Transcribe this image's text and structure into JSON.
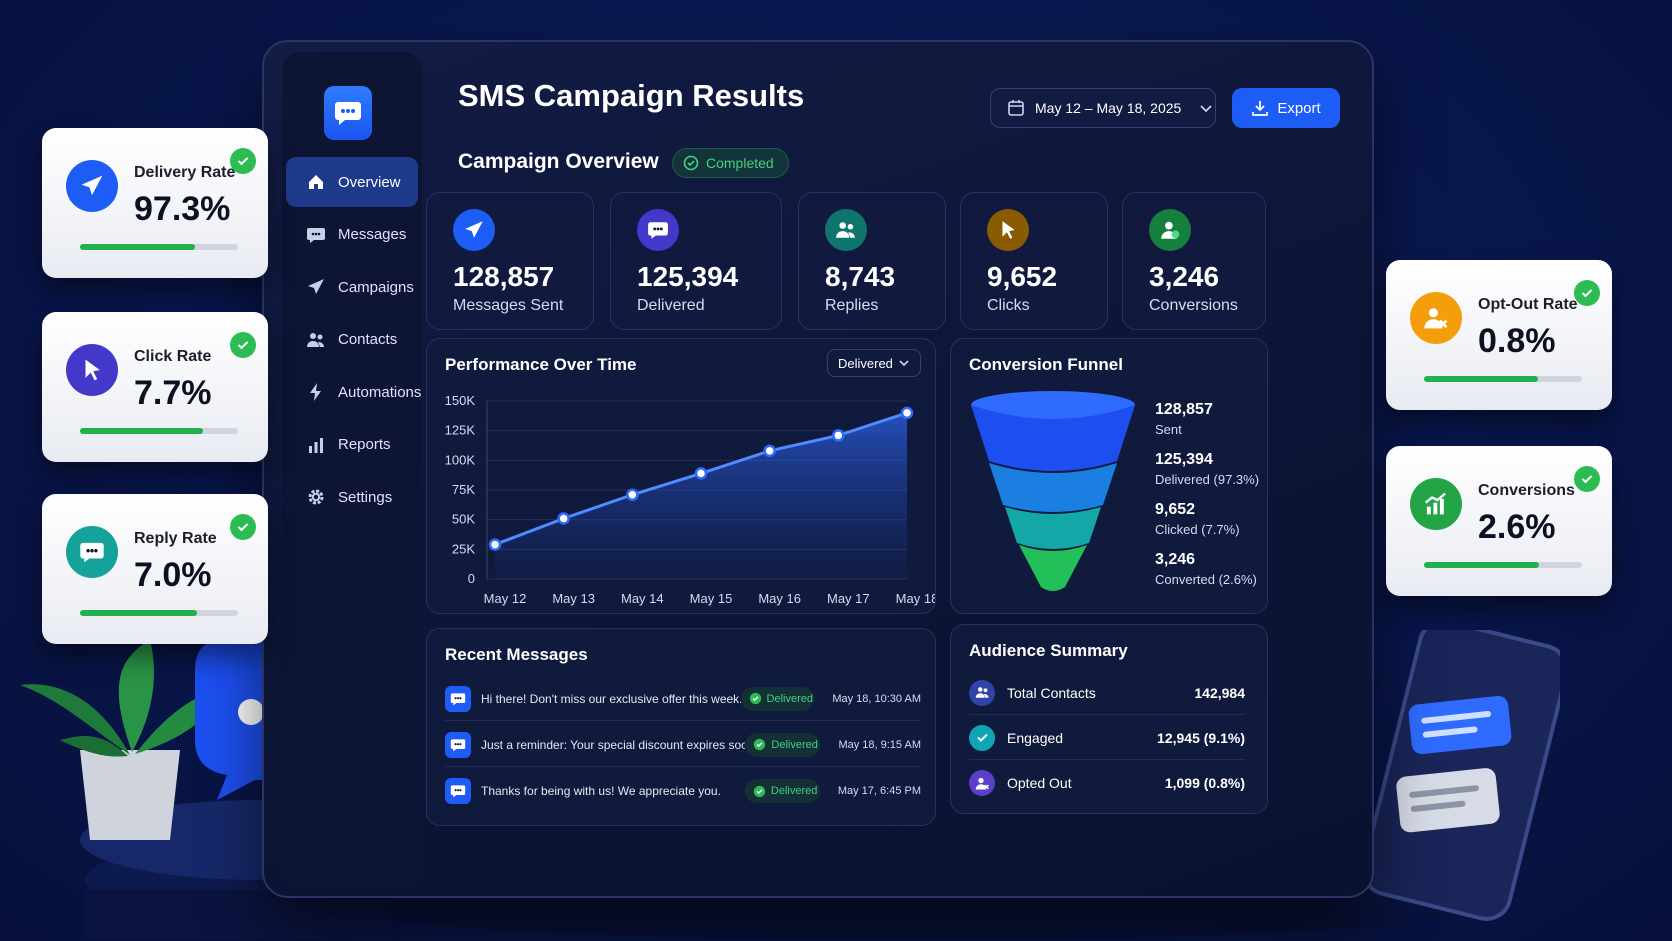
{
  "app": {
    "title": "SMS Campaign Results",
    "date_range": "May 12 – May 18, 2025",
    "export_label": "Export"
  },
  "sidebar": {
    "items": [
      {
        "label": "Overview",
        "icon": "home-icon",
        "active": true
      },
      {
        "label": "Messages",
        "icon": "chat-icon"
      },
      {
        "label": "Campaigns",
        "icon": "send-icon"
      },
      {
        "label": "Contacts",
        "icon": "users-icon"
      },
      {
        "label": "Automations",
        "icon": "bolt-icon"
      },
      {
        "label": "Reports",
        "icon": "bar-chart-icon"
      },
      {
        "label": "Settings",
        "icon": "gear-icon"
      }
    ]
  },
  "overview": {
    "title": "Campaign Overview",
    "status": "Completed",
    "stats": [
      {
        "value": "128,857",
        "label": "Messages Sent",
        "icon": "send-icon",
        "color": "#1d5cf5"
      },
      {
        "value": "125,394",
        "label": "Delivered",
        "icon": "chat-icon",
        "color": "#4338ca"
      },
      {
        "value": "8,743",
        "label": "Replies",
        "icon": "users-icon",
        "color": "#0f766e"
      },
      {
        "value": "9,652",
        "label": "Clicks",
        "icon": "cursor-icon",
        "color": "#8a5a00"
      },
      {
        "value": "3,246",
        "label": "Conversions",
        "icon": "user-check-icon",
        "color": "#15803d"
      }
    ]
  },
  "performance": {
    "title": "Performance Over Time",
    "dropdown": "Delivered"
  },
  "chart_data": {
    "type": "area",
    "categories": [
      "May 12",
      "May 13",
      "May 14",
      "May 15",
      "May 16",
      "May 17",
      "May 18"
    ],
    "series": [
      {
        "values": [
          29000,
          51000,
          71000,
          89000,
          108000,
          121000,
          140000
        ]
      }
    ],
    "ylim": [
      0,
      150000
    ],
    "yticks": [
      "0",
      "25K",
      "50K",
      "75K",
      "100K",
      "125K",
      "150K"
    ],
    "grid": true
  },
  "funnel": {
    "title": "Conversion Funnel",
    "stages": [
      {
        "value": "128,857",
        "label": "Sent",
        "color": "#1d4ff0"
      },
      {
        "value": "125,394",
        "label": "Delivered (97.3%)",
        "color": "#1a7fe0"
      },
      {
        "value": "9,652",
        "label": "Clicked (7.7%)",
        "color": "#13a7a8"
      },
      {
        "value": "3,246",
        "label": "Converted (2.6%)",
        "color": "#23c05a"
      }
    ]
  },
  "recent_messages": {
    "title": "Recent Messages",
    "items": [
      {
        "text": "Hi there! Don't miss our exclusive offer this week.",
        "status": "Delivered",
        "time": "May 18, 10:30 AM"
      },
      {
        "text": "Just a reminder: Your special discount expires soon!",
        "status": "Delivered",
        "time": "May 18, 9:15 AM"
      },
      {
        "text": "Thanks for being with us! We appreciate you.",
        "status": "Delivered",
        "time": "May 17, 6:45 PM"
      }
    ]
  },
  "audience": {
    "title": "Audience Summary",
    "items": [
      {
        "label": "Total Contacts",
        "value": "142,984",
        "icon": "users-icon",
        "color": "#3044a8"
      },
      {
        "label": "Engaged",
        "value": "12,945 (9.1%)",
        "icon": "check-icon",
        "color": "#0ea5b5"
      },
      {
        "label": "Opted Out",
        "value": "1,099 (0.8%)",
        "icon": "user-minus-icon",
        "color": "#5b3fc8"
      }
    ]
  },
  "floating_cards": [
    {
      "label": "Delivery Rate",
      "value": "97.3%",
      "level": 0.73,
      "icon": "send-icon",
      "color": "#1d5cf5"
    },
    {
      "label": "Click Rate",
      "value": "7.7%",
      "level": 0.78,
      "icon": "cursor-icon",
      "color": "#4338ca"
    },
    {
      "label": "Reply Rate",
      "value": "7.0%",
      "level": 0.74,
      "icon": "chat-icon",
      "color": "#14a39a"
    },
    {
      "label": "Opt-Out Rate",
      "value": "0.8%",
      "level": 0.72,
      "icon": "user-minus-icon",
      "color": "#f59e0b"
    },
    {
      "label": "Conversions",
      "value": "2.6%",
      "level": 0.73,
      "icon": "growth-icon",
      "color": "#22a447"
    }
  ]
}
